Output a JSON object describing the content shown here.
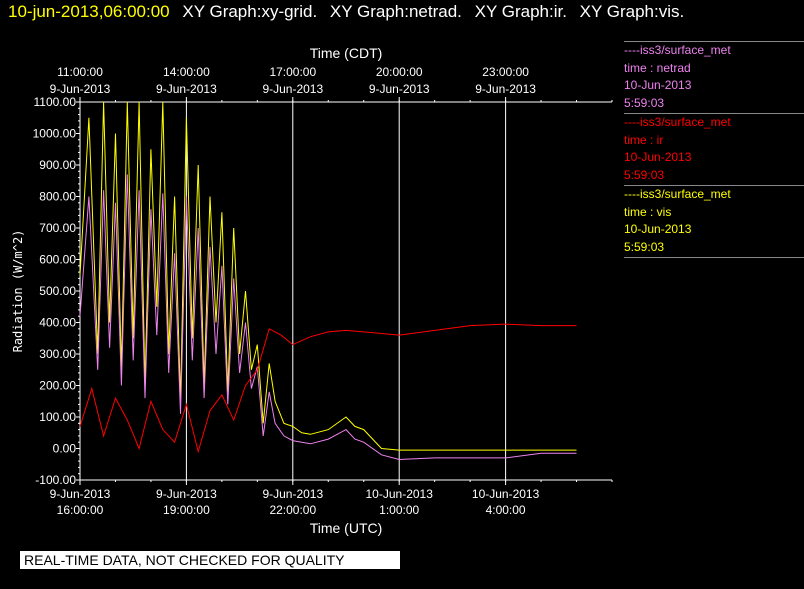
{
  "header": {
    "timestamp": "10-jun-2013,06:00:00",
    "graphs": [
      "XY Graph:xy-grid.",
      "XY Graph:netrad.",
      "XY Graph:ir.",
      "XY Graph:vis."
    ]
  },
  "footer": {
    "quality_notice": "REAL-TIME DATA, NOT CHECKED FOR QUALITY"
  },
  "legend": [
    {
      "source": "----iss3/surface_met",
      "variable": "time : netrad",
      "date": "10-Jun-2013",
      "time": "5:59:03",
      "color": "#ee82ee"
    },
    {
      "source": "----iss3/surface_met",
      "variable": "time : ir",
      "date": "10-Jun-2013",
      "time": "5:59:03",
      "color": "#ff0000"
    },
    {
      "source": "----iss3/surface_met",
      "variable": "time : vis",
      "date": "10-Jun-2013",
      "time": "5:59:03",
      "color": "#ffff00"
    }
  ],
  "chart_data": {
    "type": "line",
    "ylabel": "Radiation (W/m^2)",
    "xlabel_bottom": "Time (UTC)",
    "xlabel_top": "Time (CDT)",
    "ylim": [
      -100,
      1100
    ],
    "xlim_hours_utc": [
      "2013-06-09T16:00",
      "2013-06-10T07:00"
    ],
    "yticks": [
      "-100.00",
      "0.00",
      "100.00",
      "200.00",
      "300.00",
      "400.00",
      "500.00",
      "600.00",
      "700.00",
      "800.00",
      "900.00",
      "1000.00",
      "1100.00"
    ],
    "yticks_values": [
      -100,
      0,
      100,
      200,
      300,
      400,
      500,
      600,
      700,
      800,
      900,
      1000,
      1100
    ],
    "xticks_bottom": [
      {
        "t": "2013-06-09T16:00",
        "date": "9-Jun-2013",
        "time": "16:00:00"
      },
      {
        "t": "2013-06-09T19:00",
        "date": "9-Jun-2013",
        "time": "19:00:00"
      },
      {
        "t": "2013-06-09T22:00",
        "date": "9-Jun-2013",
        "time": "22:00:00"
      },
      {
        "t": "2013-06-10T01:00",
        "date": "10-Jun-2013",
        "time": "1:00:00"
      },
      {
        "t": "2013-06-10T04:00",
        "date": "10-Jun-2013",
        "time": "4:00:00"
      }
    ],
    "xticks_top": [
      {
        "t": "2013-06-09T16:00",
        "time": "11:00:00",
        "date": "9-Jun-2013"
      },
      {
        "t": "2013-06-09T19:00",
        "time": "14:00:00",
        "date": "9-Jun-2013"
      },
      {
        "t": "2013-06-09T22:00",
        "time": "17:00:00",
        "date": "9-Jun-2013"
      },
      {
        "t": "2013-06-10T01:00",
        "time": "20:00:00",
        "date": "9-Jun-2013"
      },
      {
        "t": "2013-06-10T04:00",
        "time": "23:00:00",
        "date": "9-Jun-2013"
      }
    ],
    "grid": "vertical lines at x ticks",
    "series": [
      {
        "color": "#ffff00",
        "t": [
          "2013-06-09T16:00",
          "2013-06-09T16:15",
          "2013-06-09T16:30",
          "2013-06-09T16:40",
          "2013-06-09T16:50",
          "2013-06-09T17:00",
          "2013-06-09T17:10",
          "2013-06-09T17:20",
          "2013-06-09T17:30",
          "2013-06-09T17:40",
          "2013-06-09T17:50",
          "2013-06-09T18:00",
          "2013-06-09T18:10",
          "2013-06-09T18:20",
          "2013-06-09T18:30",
          "2013-06-09T18:40",
          "2013-06-09T18:50",
          "2013-06-09T19:00",
          "2013-06-09T19:10",
          "2013-06-09T19:20",
          "2013-06-09T19:30",
          "2013-06-09T19:40",
          "2013-06-09T19:50",
          "2013-06-09T20:00",
          "2013-06-09T20:10",
          "2013-06-09T20:20",
          "2013-06-09T20:30",
          "2013-06-09T20:40",
          "2013-06-09T20:50",
          "2013-06-09T21:00",
          "2013-06-09T21:10",
          "2013-06-09T21:20",
          "2013-06-09T21:30",
          "2013-06-09T21:45",
          "2013-06-09T22:00",
          "2013-06-09T22:15",
          "2013-06-09T22:30",
          "2013-06-09T23:00",
          "2013-06-09T23:30",
          "2013-06-09T23:45",
          "2013-06-10T00:00",
          "2013-06-10T00:30",
          "2013-06-10T01:00",
          "2013-06-10T02:00",
          "2013-06-10T03:00",
          "2013-06-10T04:00",
          "2013-06-10T05:00",
          "2013-06-10T06:00"
        ],
        "values": [
          550,
          1050,
          300,
          1100,
          400,
          1000,
          250,
          1100,
          350,
          1100,
          200,
          950,
          450,
          1100,
          300,
          800,
          150,
          1050,
          350,
          900,
          200,
          800,
          400,
          750,
          180,
          700,
          300,
          500,
          250,
          330,
          80,
          270,
          150,
          80,
          70,
          50,
          45,
          60,
          100,
          70,
          60,
          0,
          -5,
          -5,
          -5,
          -5,
          -5,
          -5
        ]
      },
      {
        "color": "#ee82ee",
        "t": [
          "2013-06-09T16:00",
          "2013-06-09T16:15",
          "2013-06-09T16:30",
          "2013-06-09T16:40",
          "2013-06-09T16:50",
          "2013-06-09T17:00",
          "2013-06-09T17:10",
          "2013-06-09T17:20",
          "2013-06-09T17:30",
          "2013-06-09T17:40",
          "2013-06-09T17:50",
          "2013-06-09T18:00",
          "2013-06-09T18:10",
          "2013-06-09T18:20",
          "2013-06-09T18:30",
          "2013-06-09T18:40",
          "2013-06-09T18:50",
          "2013-06-09T19:00",
          "2013-06-09T19:10",
          "2013-06-09T19:20",
          "2013-06-09T19:30",
          "2013-06-09T19:40",
          "2013-06-09T19:50",
          "2013-06-09T20:00",
          "2013-06-09T20:10",
          "2013-06-09T20:20",
          "2013-06-09T20:30",
          "2013-06-09T20:40",
          "2013-06-09T20:50",
          "2013-06-09T21:00",
          "2013-06-09T21:10",
          "2013-06-09T21:20",
          "2013-06-09T21:30",
          "2013-06-09T21:45",
          "2013-06-09T22:00",
          "2013-06-09T22:15",
          "2013-06-09T22:30",
          "2013-06-09T23:00",
          "2013-06-09T23:30",
          "2013-06-09T23:45",
          "2013-06-10T00:00",
          "2013-06-10T00:30",
          "2013-06-10T01:00",
          "2013-06-10T02:00",
          "2013-06-10T03:00",
          "2013-06-10T04:00",
          "2013-06-10T05:00",
          "2013-06-10T06:00"
        ],
        "values": [
          420,
          800,
          250,
          820,
          320,
          780,
          200,
          870,
          280,
          820,
          160,
          760,
          360,
          810,
          240,
          620,
          110,
          800,
          280,
          700,
          160,
          640,
          300,
          580,
          140,
          540,
          240,
          400,
          190,
          260,
          40,
          180,
          80,
          40,
          25,
          20,
          15,
          30,
          60,
          30,
          20,
          -20,
          -35,
          -30,
          -30,
          -30,
          -15,
          -15
        ]
      },
      {
        "color": "#ff0000",
        "t": [
          "2013-06-09T16:00",
          "2013-06-09T16:20",
          "2013-06-09T16:40",
          "2013-06-09T17:00",
          "2013-06-09T17:20",
          "2013-06-09T17:40",
          "2013-06-09T18:00",
          "2013-06-09T18:20",
          "2013-06-09T18:40",
          "2013-06-09T19:00",
          "2013-06-09T19:20",
          "2013-06-09T19:40",
          "2013-06-09T20:00",
          "2013-06-09T20:20",
          "2013-06-09T20:40",
          "2013-06-09T21:00",
          "2013-06-09T21:20",
          "2013-06-09T21:40",
          "2013-06-09T22:00",
          "2013-06-09T22:30",
          "2013-06-09T23:00",
          "2013-06-09T23:30",
          "2013-06-10T00:00",
          "2013-06-10T01:00",
          "2013-06-10T02:00",
          "2013-06-10T03:00",
          "2013-06-10T04:00",
          "2013-06-10T05:00",
          "2013-06-10T06:00"
        ],
        "values": [
          70,
          190,
          40,
          160,
          90,
          0,
          150,
          60,
          20,
          140,
          -10,
          120,
          170,
          90,
          200,
          250,
          380,
          360,
          330,
          355,
          370,
          375,
          370,
          360,
          375,
          390,
          395,
          390,
          390
        ]
      }
    ]
  }
}
